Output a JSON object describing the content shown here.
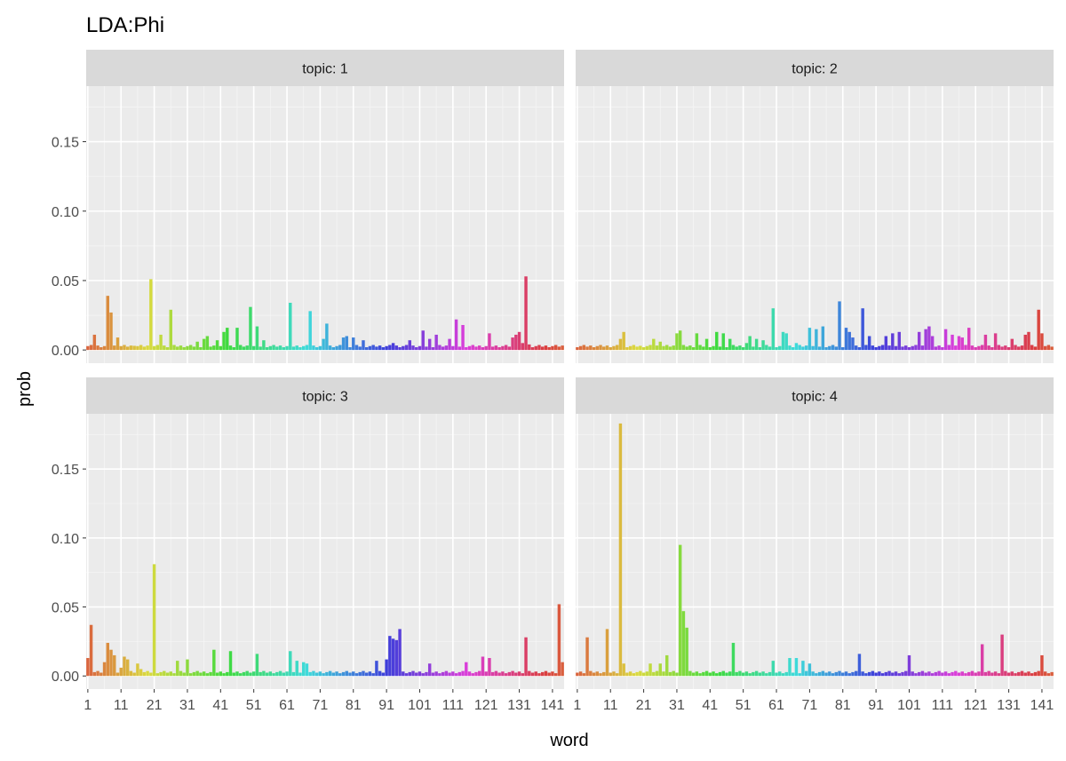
{
  "chart_data": {
    "type": "bar",
    "title": "LDA:Phi",
    "xlabel": "word",
    "ylabel": "prob",
    "facet_label_prefix": "topic: ",
    "facet_layout": "2x2 grid",
    "x_range": [
      1,
      144
    ],
    "x_ticks": [
      1,
      11,
      21,
      31,
      41,
      51,
      61,
      71,
      81,
      91,
      101,
      111,
      121,
      131,
      141
    ],
    "ylim": [
      0,
      0.19
    ],
    "y_ticks": [
      0.0,
      0.05,
      0.1,
      0.15
    ],
    "y_tick_labels": [
      "0.00",
      "0.05",
      "0.10",
      "0.15"
    ],
    "grid": true,
    "legend": "none",
    "color_encoding": "hue gradient by word index",
    "panel_background": "#ebebeb",
    "strip_background": "#d9d9d9",
    "baseline_prob": 0.002,
    "panels": [
      {
        "topic": "1",
        "peaks": [
          [
            3,
            0.011
          ],
          [
            7,
            0.039
          ],
          [
            8,
            0.027
          ],
          [
            10,
            0.009
          ],
          [
            15,
            0.003
          ],
          [
            20,
            0.051
          ],
          [
            23,
            0.011
          ],
          [
            26,
            0.029
          ],
          [
            34,
            0.006
          ],
          [
            36,
            0.008
          ],
          [
            37,
            0.01
          ],
          [
            40,
            0.007
          ],
          [
            42,
            0.013
          ],
          [
            43,
            0.016
          ],
          [
            46,
            0.016
          ],
          [
            50,
            0.031
          ],
          [
            52,
            0.017
          ],
          [
            54,
            0.007
          ],
          [
            62,
            0.034
          ],
          [
            68,
            0.028
          ],
          [
            72,
            0.008
          ],
          [
            73,
            0.019
          ],
          [
            78,
            0.009
          ],
          [
            79,
            0.01
          ],
          [
            81,
            0.009
          ],
          [
            84,
            0.007
          ],
          [
            93,
            0.005
          ],
          [
            98,
            0.007
          ],
          [
            102,
            0.014
          ],
          [
            104,
            0.008
          ],
          [
            106,
            0.011
          ],
          [
            110,
            0.008
          ],
          [
            112,
            0.022
          ],
          [
            114,
            0.018
          ],
          [
            122,
            0.012
          ],
          [
            129,
            0.009
          ],
          [
            130,
            0.011
          ],
          [
            131,
            0.013
          ],
          [
            132,
            0.005
          ],
          [
            133,
            0.053
          ],
          [
            134,
            0.004
          ]
        ]
      },
      {
        "topic": "2",
        "peaks": [
          [
            14,
            0.008
          ],
          [
            15,
            0.013
          ],
          [
            20,
            0.003
          ],
          [
            24,
            0.008
          ],
          [
            26,
            0.006
          ],
          [
            31,
            0.012
          ],
          [
            32,
            0.014
          ],
          [
            37,
            0.012
          ],
          [
            40,
            0.008
          ],
          [
            43,
            0.013
          ],
          [
            45,
            0.012
          ],
          [
            47,
            0.008
          ],
          [
            52,
            0.005
          ],
          [
            53,
            0.01
          ],
          [
            55,
            0.008
          ],
          [
            57,
            0.007
          ],
          [
            60,
            0.03
          ],
          [
            63,
            0.013
          ],
          [
            64,
            0.012
          ],
          [
            67,
            0.005
          ],
          [
            71,
            0.016
          ],
          [
            73,
            0.015
          ],
          [
            75,
            0.017
          ],
          [
            80,
            0.035
          ],
          [
            82,
            0.016
          ],
          [
            83,
            0.013
          ],
          [
            84,
            0.009
          ],
          [
            87,
            0.03
          ],
          [
            89,
            0.01
          ],
          [
            94,
            0.01
          ],
          [
            96,
            0.012
          ],
          [
            98,
            0.013
          ],
          [
            104,
            0.013
          ],
          [
            106,
            0.015
          ],
          [
            107,
            0.017
          ],
          [
            108,
            0.01
          ],
          [
            112,
            0.015
          ],
          [
            114,
            0.011
          ],
          [
            116,
            0.01
          ],
          [
            117,
            0.009
          ],
          [
            119,
            0.016
          ],
          [
            124,
            0.011
          ],
          [
            127,
            0.012
          ],
          [
            132,
            0.008
          ],
          [
            136,
            0.011
          ],
          [
            137,
            0.013
          ],
          [
            140,
            0.029
          ],
          [
            141,
            0.012
          ]
        ]
      },
      {
        "topic": "3",
        "peaks": [
          [
            1,
            0.013
          ],
          [
            2,
            0.037
          ],
          [
            6,
            0.01
          ],
          [
            7,
            0.024
          ],
          [
            8,
            0.019
          ],
          [
            9,
            0.015
          ],
          [
            11,
            0.006
          ],
          [
            12,
            0.014
          ],
          [
            13,
            0.012
          ],
          [
            16,
            0.009
          ],
          [
            17,
            0.005
          ],
          [
            21,
            0.081
          ],
          [
            28,
            0.011
          ],
          [
            31,
            0.012
          ],
          [
            39,
            0.019
          ],
          [
            44,
            0.018
          ],
          [
            52,
            0.016
          ],
          [
            62,
            0.018
          ],
          [
            64,
            0.011
          ],
          [
            66,
            0.01
          ],
          [
            67,
            0.009
          ],
          [
            88,
            0.011
          ],
          [
            91,
            0.012
          ],
          [
            92,
            0.029
          ],
          [
            93,
            0.027
          ],
          [
            94,
            0.026
          ],
          [
            95,
            0.034
          ],
          [
            104,
            0.009
          ],
          [
            115,
            0.01
          ],
          [
            120,
            0.014
          ],
          [
            122,
            0.013
          ],
          [
            133,
            0.028
          ],
          [
            143,
            0.052
          ],
          [
            144,
            0.01
          ]
        ]
      },
      {
        "topic": "4",
        "peaks": [
          [
            4,
            0.028
          ],
          [
            10,
            0.034
          ],
          [
            14,
            0.183
          ],
          [
            15,
            0.009
          ],
          [
            23,
            0.009
          ],
          [
            26,
            0.009
          ],
          [
            28,
            0.015
          ],
          [
            32,
            0.095
          ],
          [
            33,
            0.047
          ],
          [
            34,
            0.035
          ],
          [
            48,
            0.024
          ],
          [
            60,
            0.011
          ],
          [
            65,
            0.013
          ],
          [
            67,
            0.013
          ],
          [
            69,
            0.011
          ],
          [
            71,
            0.009
          ],
          [
            86,
            0.016
          ],
          [
            101,
            0.015
          ],
          [
            123,
            0.023
          ],
          [
            129,
            0.03
          ],
          [
            141,
            0.015
          ]
        ]
      }
    ]
  }
}
